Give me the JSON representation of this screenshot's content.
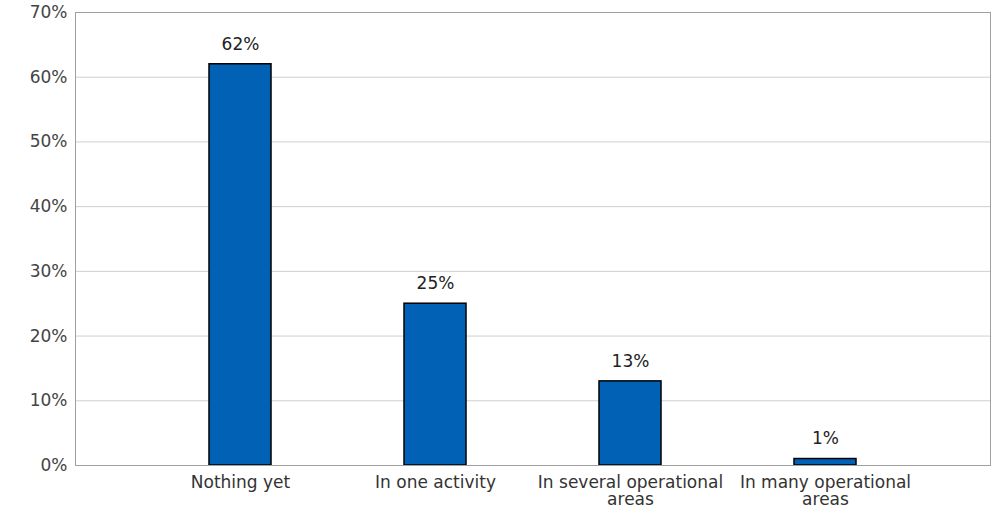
{
  "chart_data": {
    "type": "bar",
    "categories": [
      "Nothing yet",
      "In one activity",
      "In several operational areas",
      "In many operational areas"
    ],
    "values": [
      62,
      25,
      13,
      1
    ],
    "value_labels": [
      "62%",
      "25%",
      "13%",
      "1%"
    ],
    "data_labels": true,
    "color": "#0061b5",
    "ylim": [
      0,
      70
    ],
    "yticks": [
      {
        "value": 0,
        "label": "0%"
      },
      {
        "value": 10,
        "label": "10%"
      },
      {
        "value": 20,
        "label": "20%"
      },
      {
        "value": 30,
        "label": "30%"
      },
      {
        "value": 40,
        "label": "40%"
      },
      {
        "value": 50,
        "label": "50%"
      },
      {
        "value": 60,
        "label": "60%"
      },
      {
        "value": 70,
        "label": "70%"
      }
    ],
    "grid": true
  }
}
